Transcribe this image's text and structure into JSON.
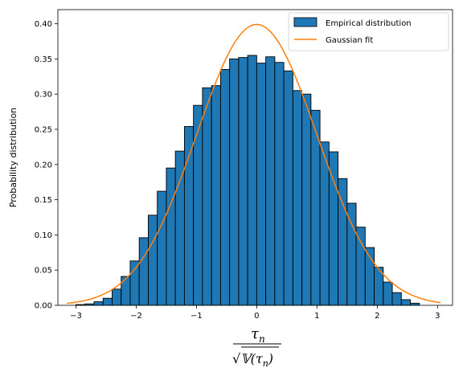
{
  "chart_data": {
    "type": "bar",
    "ylabel": "Probability distribution",
    "xlabel": {
      "numerator": "τ",
      "numerator_sub": "n",
      "denominator": "√𝕍(τ",
      "denominator_sub": "n",
      "denominator_close": ")"
    },
    "xlim": [
      -3.3,
      3.25
    ],
    "ylim": [
      0,
      0.42
    ],
    "xticks": [
      -3,
      -2,
      -1,
      0,
      1,
      2,
      3
    ],
    "xtick_labels": [
      "−3",
      "−2",
      "−1",
      "0",
      "1",
      "2",
      "3"
    ],
    "yticks": [
      0.0,
      0.05,
      0.1,
      0.15,
      0.2,
      0.25,
      0.3,
      0.35,
      0.4
    ],
    "ytick_labels": [
      "0.00",
      "0.05",
      "0.10",
      "0.15",
      "0.20",
      "0.25",
      "0.30",
      "0.35",
      "0.40"
    ],
    "grid": false,
    "legend_position": "top-right",
    "series": [
      {
        "name": "Empirical distribution",
        "kind": "histogram",
        "color": "#1f77b4",
        "edgecolor": "#000000",
        "bin_edges": [
          -3.0,
          -2.85,
          -2.7,
          -2.55,
          -2.4,
          -2.25,
          -2.1,
          -1.95,
          -1.8,
          -1.65,
          -1.5,
          -1.35,
          -1.2,
          -1.05,
          -0.9,
          -0.75,
          -0.6,
          -0.45,
          -0.3,
          -0.15,
          0.0,
          0.15,
          0.3,
          0.45,
          0.6,
          0.75,
          0.9,
          1.05,
          1.2,
          1.35,
          1.5,
          1.65,
          1.8,
          1.95,
          2.1,
          2.25,
          2.4,
          2.55,
          2.7
        ],
        "values": [
          0.001,
          0.002,
          0.005,
          0.01,
          0.023,
          0.041,
          0.063,
          0.096,
          0.128,
          0.162,
          0.195,
          0.219,
          0.254,
          0.284,
          0.309,
          0.312,
          0.335,
          0.35,
          0.352,
          0.355,
          0.344,
          0.353,
          0.345,
          0.333,
          0.305,
          0.3,
          0.277,
          0.232,
          0.218,
          0.18,
          0.145,
          0.111,
          0.082,
          0.054,
          0.033,
          0.018,
          0.008,
          0.003
        ]
      },
      {
        "name": "Gaussian fit",
        "kind": "line",
        "color": "#ff7f0e",
        "function": "standard normal pdf",
        "x_range": [
          -3.15,
          3.05
        ]
      }
    ]
  }
}
